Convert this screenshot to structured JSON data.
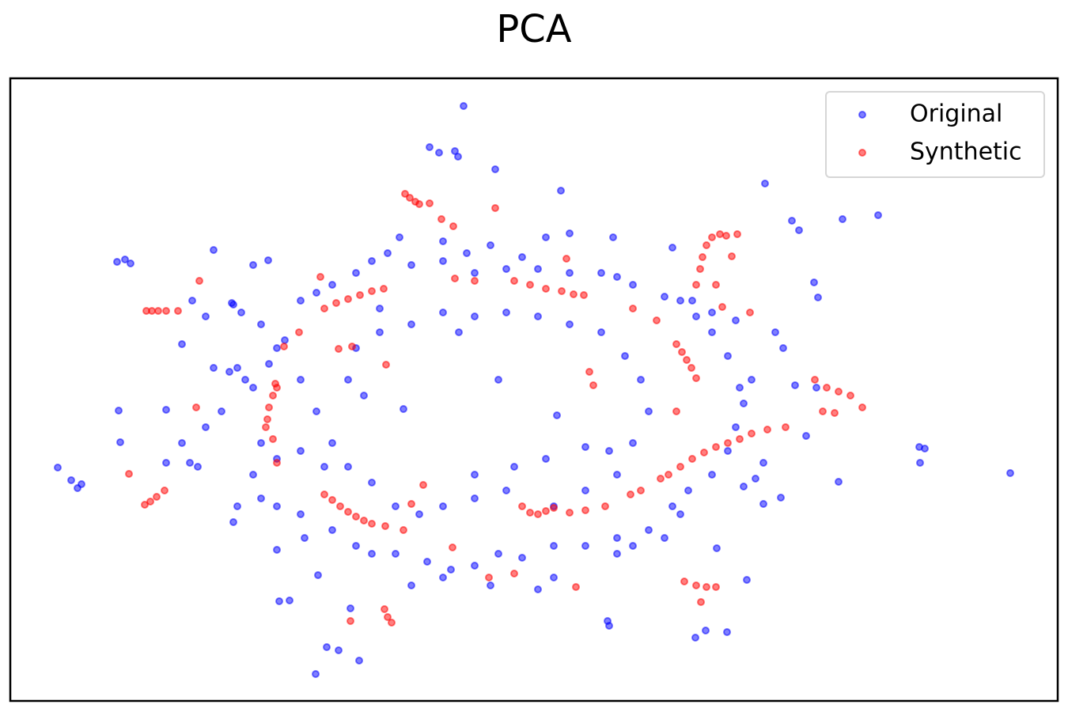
{
  "chart_data": {
    "type": "scatter",
    "title": "PCA",
    "legend": "upper right",
    "xlim": [
      13,
      1337
    ],
    "ylim": [
      886,
      99
    ],
    "series": [
      {
        "name": "Original",
        "color": "#0000ff",
        "x": [
          586,
          543,
          555,
          575,
          579,
          626,
          709,
          967,
          1001,
          1010,
          1065,
          1110,
          148,
          158,
          165,
          270,
          73,
          90,
          98,
          103,
          150,
          152,
          210,
          1029,
          1034,
          1162,
          1169,
          1163,
          1277,
          1060,
          399,
          413,
          428,
          454,
          353,
          366,
          402,
          443,
          768,
          770,
          879,
          892,
          919,
          944,
          906,
          987,
          965,
          1005,
          1019,
          300,
          290,
          310,
          320,
          295,
          305,
          330,
          350,
          320,
          330,
          350,
          380,
          420,
          450,
          470,
          500,
          540,
          570,
          600,
          630,
          660,
          700,
          740,
          780,
          820,
          850,
          860,
          870,
          900,
          920,
          930,
          940,
          935,
          950,
          920,
          900,
          880,
          860,
          840,
          800,
          780,
          760,
          720,
          680,
          640,
          600,
          560,
          520,
          490,
          470,
          450,
          420,
          400,
          380,
          360,
          340,
          380,
          400,
          420,
          440,
          470,
          500,
          530,
          560,
          600,
          640,
          700,
          740,
          780,
          800,
          820,
          810,
          790,
          760,
          720,
          680,
          640,
          600,
          560,
          520,
          480,
          450,
          440,
          460,
          510,
          704,
          630,
          580,
          270,
          280,
          260,
          240,
          300,
          295,
          350,
          385,
          965,
          955,
          940,
          875,
          900,
          980,
          990,
          1032,
          930,
          480,
          740,
          770,
          600,
          650,
          690,
          380,
          410,
          330,
          350,
          230,
          243,
          260,
          293,
          320,
          339,
          505,
          560,
          590,
          620,
          660,
          690,
          720,
          775,
          850,
          230,
          250,
          210,
          780,
          800,
          840,
          520,
          560,
          620,
          680,
          700
        ],
        "y": [
          134,
          186,
          193,
          191,
          198,
          214,
          241,
          232,
          279,
          291,
          277,
          272,
          331,
          328,
          333,
          316,
          591,
          607,
          617,
          612,
          519,
          559,
          518,
          357,
          376,
          565,
          567,
          585,
          598,
          609,
          852,
          818,
          822,
          835,
          760,
          759,
          727,
          769,
          785,
          791,
          806,
          797,
          799,
          733,
          693,
          629,
          637,
          487,
          551,
          465,
          470,
          480,
          490,
          385,
          395,
          410,
          440,
          600,
          630,
          640,
          650,
          670,
          690,
          700,
          700,
          710,
          720,
          715,
          700,
          705,
          690,
          690,
          680,
          670,
          640,
          650,
          620,
          600,
          570,
          540,
          510,
          490,
          480,
          450,
          420,
          400,
          380,
          375,
          360,
          350,
          345,
          345,
          340,
          340,
          345,
          330,
          335,
          320,
          330,
          345,
          360,
          370,
          380,
          430,
          460,
          480,
          520,
          560,
          590,
          610,
          640,
          650,
          640,
          630,
          620,
          640,
          620,
          600,
          560,
          520,
          480,
          450,
          420,
          410,
          400,
          395,
          400,
          395,
          410,
          420,
          440,
          480,
          500,
          517,
          525,
          480,
          420,
          465,
          520,
          540,
          585,
          640,
          660,
          695,
          680,
          585,
          605,
          615,
          380,
          395,
          420,
          440,
          490,
          405,
          390,
          565,
          570,
          600,
          590,
          580,
          570,
          590,
          560,
          580,
          435,
          380,
          400,
          383,
          335,
          329,
          300,
          305,
          320,
          310,
          325,
          300,
          295,
          300,
          313,
          560,
          590,
          585,
          700,
          690,
          680,
          740,
          730,
          740,
          745,
          730
        ]
      },
      {
        "name": "Synthetic",
        "color": "#ff0000",
        "x": [
          512,
          518,
          525,
          530,
          543,
          558,
          573,
          626,
          185,
          192,
          200,
          210,
          225,
          252,
          183,
          190,
          198,
          208,
          163,
          338,
          340,
          345,
          348,
          350,
          336,
          345,
          350,
          410,
          425,
          440,
          455,
          470,
          485,
          410,
          420,
          430,
          440,
          450,
          460,
          470,
          487,
          486,
          490,
          495,
          443,
          650,
          670,
          690,
          710,
          725,
          738,
          600,
          575,
          716,
          855,
          862,
          868,
          874,
          880,
          830,
          885,
          888,
          893,
          900,
          910,
          918,
          932,
          925,
          880,
          905,
          913,
          948,
          835,
          845,
          860,
          875,
          890,
          905,
          920,
          935,
          950,
          970,
          993,
          660,
          670,
          680,
          690,
          700,
          720,
          740,
          765,
          810,
          797,
          1030,
          1045,
          1060,
          1075,
          1090,
          1040,
          1055,
          865,
          880,
          893,
          905,
          886,
          728,
          650,
          618,
          572,
          520,
          510,
          535,
          488,
          445,
          428,
          405,
          378,
          359,
          248,
          745,
          750,
          800,
          855
        ],
        "y": [
          245,
          250,
          255,
          258,
          257,
          277,
          286,
          263,
          393,
          393,
          393,
          393,
          393,
          355,
          638,
          634,
          628,
          620,
          599,
          530,
          515,
          500,
          485,
          490,
          540,
          555,
          585,
          390,
          383,
          378,
          373,
          368,
          365,
          625,
          632,
          640,
          647,
          653,
          658,
          662,
          665,
          770,
          780,
          787,
          785,
          355,
          360,
          365,
          368,
          372,
          373,
          355,
          352,
          327,
          435,
          445,
          455,
          465,
          478,
          405,
          340,
          325,
          310,
          300,
          296,
          298,
          296,
          324,
          360,
          360,
          388,
          395,
          605,
          600,
          590,
          580,
          572,
          565,
          560,
          555,
          548,
          543,
          540,
          640,
          648,
          650,
          646,
          642,
          648,
          645,
          640,
          620,
          625,
          480,
          490,
          495,
          500,
          515,
          520,
          522,
          735,
          740,
          742,
          742,
          761,
          742,
          725,
          730,
          692,
          637,
          670,
          613,
          461,
          438,
          441,
          350,
          420,
          438,
          515,
          470,
          487,
          390,
          520
        ]
      }
    ]
  }
}
